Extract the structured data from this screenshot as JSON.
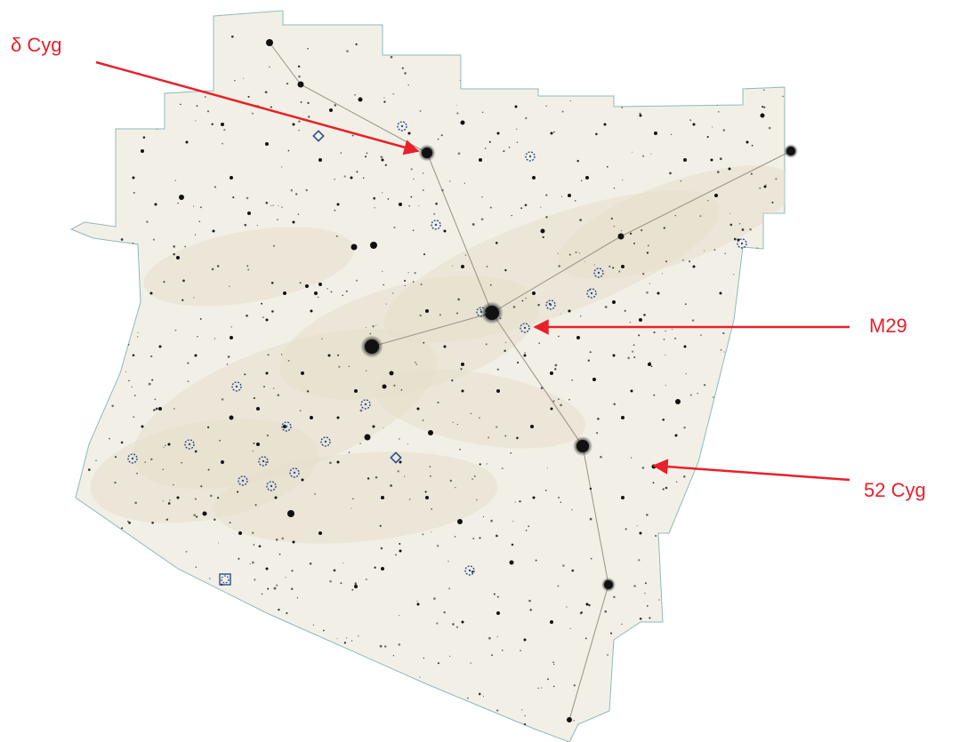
{
  "map": {
    "labels": {
      "delta_cyg": "δ Cyg",
      "m29": "M29",
      "cyg52": "52 Cyg"
    },
    "colors": {
      "callout": "#e8202a",
      "region_fill": "#f2f0e6",
      "boundary": "#8fb8bc",
      "star": "#111111",
      "asterism_line": "#9a9088",
      "deep_sky": "#2e4c8f"
    },
    "symbols": {
      "open_cluster": "dashed-circle",
      "planetary_nebula": "diamond",
      "galaxy_cluster": "square-circle"
    }
  }
}
